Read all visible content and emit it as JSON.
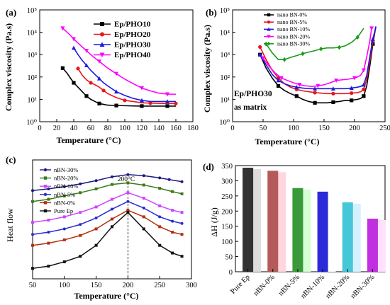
{
  "figure": {
    "panels": [
      {
        "id": "a",
        "label": "(a)"
      },
      {
        "id": "b",
        "label": "(b)"
      },
      {
        "id": "c",
        "label": "(c)"
      },
      {
        "id": "d",
        "label": "(d)"
      }
    ]
  },
  "chart_data": [
    {
      "panel": "(a)",
      "type": "line",
      "xlabel": "Temperature (°C)",
      "ylabel": "Complex viscosity (Pa.s)",
      "xlim": [
        0,
        180
      ],
      "ylim_log10": [
        0,
        5
      ],
      "x_ticks": [
        "0",
        "20",
        "40",
        "60",
        "80",
        "100",
        "120",
        "140",
        "160",
        "180"
      ],
      "y_ticks": [
        "10⁰",
        "10¹",
        "10²",
        "10³",
        "10⁴",
        "10⁵"
      ],
      "legend_position": "top-right",
      "grid": false,
      "series": [
        {
          "name": "Ep/PHO10",
          "color": "#000000",
          "marker": "square",
          "x": [
            27,
            32,
            36,
            40,
            45,
            50,
            55,
            60,
            65,
            70,
            75,
            80,
            90,
            100,
            110,
            120,
            130,
            140,
            150,
            160
          ],
          "y": [
            250,
            150,
            90,
            55,
            35,
            22,
            14,
            10,
            8,
            6.5,
            6,
            5.5,
            5.3,
            5.2,
            5.1,
            5,
            5,
            5,
            5,
            5
          ]
        },
        {
          "name": "Ep/PHO20",
          "color": "#e8141e",
          "marker": "circle",
          "x": [
            45,
            50,
            55,
            60,
            65,
            70,
            75,
            80,
            90,
            100,
            110,
            120,
            130,
            140,
            150,
            160
          ],
          "y": [
            240,
            120,
            75,
            55,
            45,
            35,
            25,
            18,
            12,
            9,
            8,
            7,
            6.8,
            6.6,
            6.5,
            6.5
          ]
        },
        {
          "name": "Ep/PHO30",
          "color": "#1c1ae0",
          "marker": "triangle",
          "x": [
            40,
            45,
            50,
            55,
            60,
            65,
            70,
            75,
            80,
            90,
            100,
            110,
            120,
            130,
            140,
            150,
            160
          ],
          "y": [
            2000,
            1000,
            550,
            330,
            200,
            130,
            85,
            55,
            40,
            22,
            15,
            11,
            9,
            8,
            8,
            8,
            8
          ]
        },
        {
          "name": "Ep/PHO40",
          "color": "#ff00ff",
          "marker": "triangle-down",
          "x": [
            27,
            30,
            35,
            40,
            45,
            50,
            55,
            60,
            65,
            70,
            75,
            80,
            90,
            100,
            110,
            120,
            130,
            140,
            150,
            160
          ],
          "y": [
            15000,
            12000,
            8000,
            5000,
            3300,
            2200,
            1500,
            1000,
            700,
            500,
            350,
            250,
            140,
            80,
            50,
            32,
            24,
            19,
            17,
            17
          ]
        }
      ]
    },
    {
      "panel": "(b)",
      "type": "line",
      "xlabel": "Temperature (°C)",
      "ylabel": "Complex viscosity (Pa.s)",
      "annotation": [
        "Ep/PHO30",
        "as matrix"
      ],
      "xlim": [
        0,
        250
      ],
      "ylim_log10": [
        0,
        5
      ],
      "x_ticks": [
        "0",
        "50",
        "100",
        "150",
        "200",
        "250"
      ],
      "y_ticks": [
        "10⁰",
        "10¹",
        "10²",
        "10³",
        "10⁴",
        "10⁵"
      ],
      "legend_position": "top-left",
      "grid": false,
      "series": [
        {
          "name": "nano BN-0%",
          "color": "#000000",
          "marker": "square",
          "x": [
            45,
            55,
            65,
            75,
            85,
            95,
            105,
            115,
            125,
            135,
            145,
            155,
            165,
            175,
            185,
            195,
            205,
            210,
            215,
            220,
            225,
            230,
            235
          ],
          "y": [
            1000,
            250,
            90,
            40,
            25,
            18,
            14,
            10,
            8,
            7,
            7,
            7,
            7.5,
            8,
            9,
            9,
            10,
            11,
            14,
            40,
            300,
            3000,
            18000
          ]
        },
        {
          "name": "nano BN-5%",
          "color": "#e8141e",
          "marker": "circle",
          "x": [
            45,
            55,
            65,
            75,
            85,
            95,
            105,
            115,
            125,
            135,
            145,
            155,
            165,
            175,
            185,
            195,
            205,
            210,
            215,
            220,
            225,
            230,
            235
          ],
          "y": [
            2200,
            600,
            200,
            90,
            50,
            35,
            28,
            24,
            22,
            20,
            19,
            18,
            18,
            18,
            18,
            19,
            20,
            22,
            28,
            80,
            500,
            4000,
            18000
          ]
        },
        {
          "name": "nano BN-10%",
          "color": "#1c1ae0",
          "marker": "triangle",
          "x": [
            45,
            55,
            65,
            75,
            85,
            95,
            105,
            115,
            125,
            135,
            145,
            155,
            165,
            175,
            185,
            195,
            205,
            210,
            215,
            220,
            225,
            230,
            235
          ],
          "y": [
            1000,
            350,
            130,
            70,
            50,
            40,
            35,
            32,
            30,
            30,
            30,
            30,
            30,
            30,
            30,
            32,
            35,
            38,
            45,
            120,
            800,
            5000,
            18000
          ]
        },
        {
          "name": "nano BN-20%",
          "color": "#ff00ff",
          "marker": "triangle-down",
          "x": [
            50,
            60,
            70,
            80,
            90,
            100,
            110,
            120,
            130,
            140,
            150,
            160,
            170,
            180,
            190,
            200,
            205,
            210,
            215,
            220,
            225,
            228
          ],
          "y": [
            700,
            300,
            150,
            90,
            70,
            55,
            45,
            40,
            38,
            40,
            45,
            55,
            70,
            75,
            80,
            90,
            100,
            120,
            200,
            800,
            4000,
            15000
          ]
        },
        {
          "name": "nano BN-30%",
          "color": "#1a9a1a",
          "marker": "diamond",
          "x": [
            55,
            65,
            75,
            85,
            95,
            105,
            115,
            125,
            135,
            145,
            155,
            165,
            175,
            185,
            195,
            205,
            215
          ],
          "y": [
            3000,
            1200,
            600,
            600,
            750,
            900,
            1100,
            1300,
            1500,
            1800,
            2000,
            2000,
            2100,
            2500,
            3500,
            6000,
            15000
          ]
        }
      ]
    },
    {
      "panel": "(c)",
      "type": "line",
      "xlabel": "Temperature (°C)",
      "ylabel": "Heat flow",
      "peak_annotation": "200°C",
      "xlim": [
        50,
        300
      ],
      "x_ticks": [
        "50",
        "100",
        "150",
        "200",
        "250",
        "300"
      ],
      "legend_position": "top-left",
      "grid": false,
      "series": [
        {
          "name": "nBN-30%",
          "color": "#1a1a80",
          "marker": "circle",
          "x": [
            50,
            75,
            100,
            125,
            150,
            175,
            200,
            225,
            250,
            265,
            285
          ],
          "y": [
            7.6,
            7.75,
            7.95,
            8.2,
            8.5,
            8.85,
            9.05,
            8.95,
            8.75,
            8.6,
            8.4
          ]
        },
        {
          "name": "nBN-20%",
          "color": "#3a7a1a",
          "marker": "square",
          "x": [
            50,
            75,
            100,
            125,
            150,
            175,
            200,
            225,
            250,
            270,
            285
          ],
          "y": [
            6.6,
            6.8,
            7.1,
            7.4,
            7.75,
            8.15,
            8.3,
            8.1,
            7.8,
            7.5,
            7.3
          ]
        },
        {
          "name": "nBN-10%",
          "color": "#cc44ff",
          "marker": "square",
          "x": [
            50,
            75,
            100,
            125,
            150,
            175,
            200,
            225,
            250,
            270,
            285
          ],
          "y": [
            4.7,
            4.9,
            5.2,
            5.6,
            6.1,
            6.8,
            7.4,
            6.9,
            6.2,
            5.8,
            5.6
          ]
        },
        {
          "name": "nBN-5%",
          "color": "#2a2ad0",
          "marker": "circle",
          "x": [
            50,
            75,
            100,
            125,
            150,
            175,
            200,
            225,
            250,
            270,
            285
          ],
          "y": [
            3.6,
            3.8,
            4.1,
            4.5,
            5.1,
            5.9,
            6.6,
            6.0,
            5.2,
            4.8,
            4.6
          ]
        },
        {
          "name": "nBN-0%",
          "color": "#b03010",
          "marker": "square",
          "x": [
            50,
            75,
            100,
            125,
            150,
            175,
            200,
            225,
            250,
            270,
            285
          ],
          "y": [
            2.6,
            2.8,
            3.1,
            3.5,
            4.1,
            5.0,
            5.8,
            5.2,
            4.3,
            3.8,
            3.6
          ]
        },
        {
          "name": "Pure Ep",
          "color": "#111111",
          "marker": "square",
          "x": [
            50,
            75,
            100,
            125,
            150,
            175,
            200,
            225,
            250,
            270,
            285
          ],
          "y": [
            0.5,
            0.7,
            1.1,
            1.6,
            2.6,
            4.3,
            5.6,
            4.1,
            2.6,
            1.9,
            1.6
          ]
        }
      ]
    },
    {
      "panel": "(d)",
      "type": "bar",
      "ylabel": "ΔH (J/g)",
      "ylim": [
        0,
        350
      ],
      "y_ticks": [
        "0",
        "50",
        "100",
        "150",
        "200",
        "250",
        "300",
        "350"
      ],
      "grid": false,
      "categories": [
        "Pure Ep",
        "nBN-0%",
        "nBN-5%",
        "nBN-10%",
        "nBN-20%",
        "nBN-30%"
      ],
      "values": [
        343,
        333,
        276,
        264,
        229,
        175
      ],
      "colors": [
        "#333333",
        "#b55a5a",
        "#3a9a3a",
        "#2a2ad8",
        "#44c8d8",
        "#c030e0"
      ],
      "shadow_colors": [
        "#dddddd",
        "#ffd5e0",
        "#d5ffd5",
        "#ffffff",
        "#d5f0ff",
        "#ffe0ff"
      ]
    }
  ]
}
